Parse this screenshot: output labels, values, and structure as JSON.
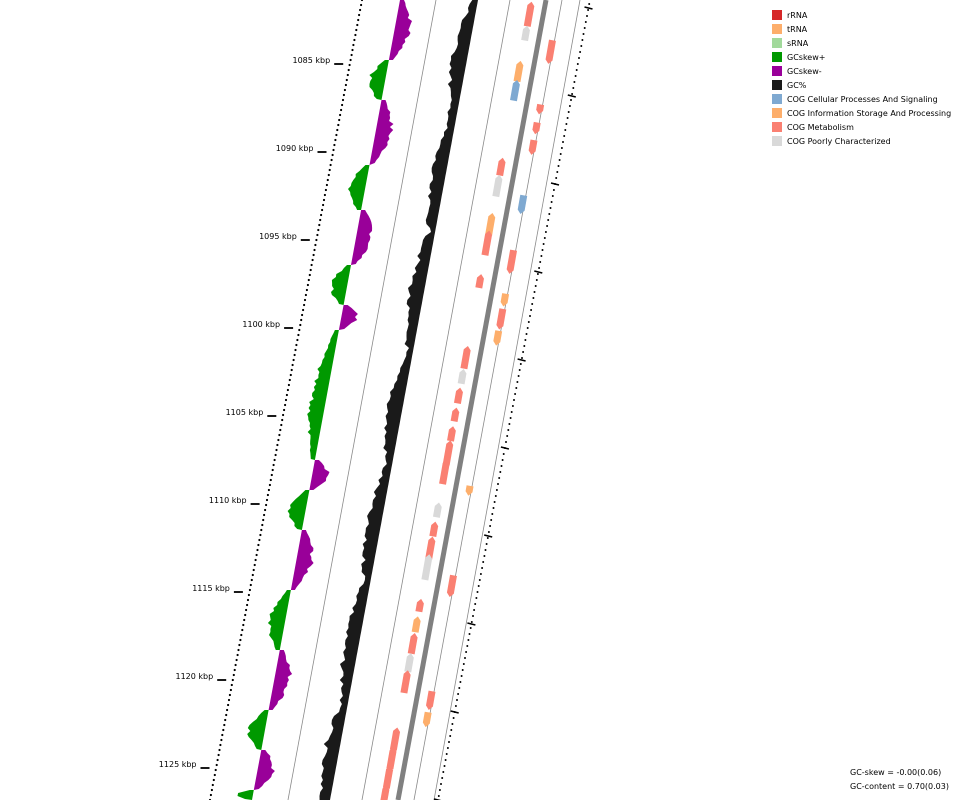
{
  "legend": [
    {
      "label": "rRNA",
      "color": "#d62728"
    },
    {
      "label": "tRNA",
      "color": "#fdae6b"
    },
    {
      "label": "sRNA",
      "color": "#a1d99b"
    },
    {
      "label": "GCskew+",
      "color": "#009900"
    },
    {
      "label": "GCskew-",
      "color": "#990099"
    },
    {
      "label": "GC%",
      "color": "#1a1a1a"
    },
    {
      "label": "COG Cellular Processes And Signaling",
      "color": "#7fa9d1"
    },
    {
      "label": "COG Information Storage And Processing",
      "color": "#fdae6b"
    },
    {
      "label": "COG Metabolism",
      "color": "#fa8072"
    },
    {
      "label": "COG Poorly Characterized",
      "color": "#d9d9d9"
    }
  ],
  "tick_labels": [
    "1085 kbp",
    "1090 kbp",
    "1095 kbp",
    "1100 kbp",
    "1105 kbp",
    "1110 kbp",
    "1115 kbp",
    "1120 kbp",
    "1125 kbp"
  ],
  "stats": {
    "gc_skew": "GC-skew = -0.00(0.06)",
    "gc_content": "GC-content = 0.70(0.03)"
  },
  "features": [
    {
      "type": "COG Metabolism",
      "strand": "+"
    },
    {
      "type": "COG Poorly Characterized",
      "strand": "+"
    },
    {
      "type": "COG Metabolism",
      "strand": "-"
    },
    {
      "type": "COG Information Storage And Processing",
      "strand": "+"
    },
    {
      "type": "COG Cellular Processes And Signaling",
      "strand": "+"
    },
    {
      "type": "COG Metabolism",
      "strand": "-"
    },
    {
      "type": "COG Metabolism",
      "strand": "-"
    },
    {
      "type": "COG Metabolism",
      "strand": "-"
    },
    {
      "type": "COG Metabolism",
      "strand": "+"
    },
    {
      "type": "COG Poorly Characterized",
      "strand": "+"
    },
    {
      "type": "COG Cellular Processes And Signaling",
      "strand": "-"
    },
    {
      "type": "COG Information Storage And Processing",
      "strand": "+"
    },
    {
      "type": "COG Metabolism",
      "strand": "+"
    },
    {
      "type": "COG Metabolism",
      "strand": "-"
    },
    {
      "type": "COG Metabolism",
      "strand": "+"
    },
    {
      "type": "COG Information Storage And Processing",
      "strand": "-"
    },
    {
      "type": "COG Metabolism",
      "strand": "-"
    },
    {
      "type": "COG Information Storage And Processing",
      "strand": "-"
    },
    {
      "type": "COG Metabolism",
      "strand": "+"
    },
    {
      "type": "COG Poorly Characterized",
      "strand": "+"
    },
    {
      "type": "COG Metabolism",
      "strand": "+"
    },
    {
      "type": "COG Metabolism",
      "strand": "+"
    },
    {
      "type": "COG Metabolism",
      "strand": "+"
    },
    {
      "type": "COG Metabolism",
      "strand": "+"
    },
    {
      "type": "COG Metabolism",
      "strand": "+"
    },
    {
      "type": "COG Information Storage And Processing",
      "strand": "-"
    },
    {
      "type": "COG Poorly Characterized",
      "strand": "+"
    },
    {
      "type": "COG Metabolism",
      "strand": "+"
    },
    {
      "type": "COG Metabolism",
      "strand": "+"
    },
    {
      "type": "COG Poorly Characterized",
      "strand": "+"
    },
    {
      "type": "COG Metabolism",
      "strand": "-"
    },
    {
      "type": "COG Metabolism",
      "strand": "+"
    },
    {
      "type": "COG Information Storage And Processing",
      "strand": "+"
    },
    {
      "type": "COG Metabolism",
      "strand": "+"
    },
    {
      "type": "COG Poorly Characterized",
      "strand": "+"
    },
    {
      "type": "COG Metabolism",
      "strand": "+"
    },
    {
      "type": "COG Metabolism",
      "strand": "-"
    },
    {
      "type": "COG Information Storage And Processing",
      "strand": "-"
    },
    {
      "type": "COG Metabolism",
      "strand": "+"
    },
    {
      "type": "COG Metabolism",
      "strand": "+"
    },
    {
      "type": "COG Metabolism",
      "strand": "+"
    },
    {
      "type": "COG Metabolism",
      "strand": "+"
    }
  ]
}
